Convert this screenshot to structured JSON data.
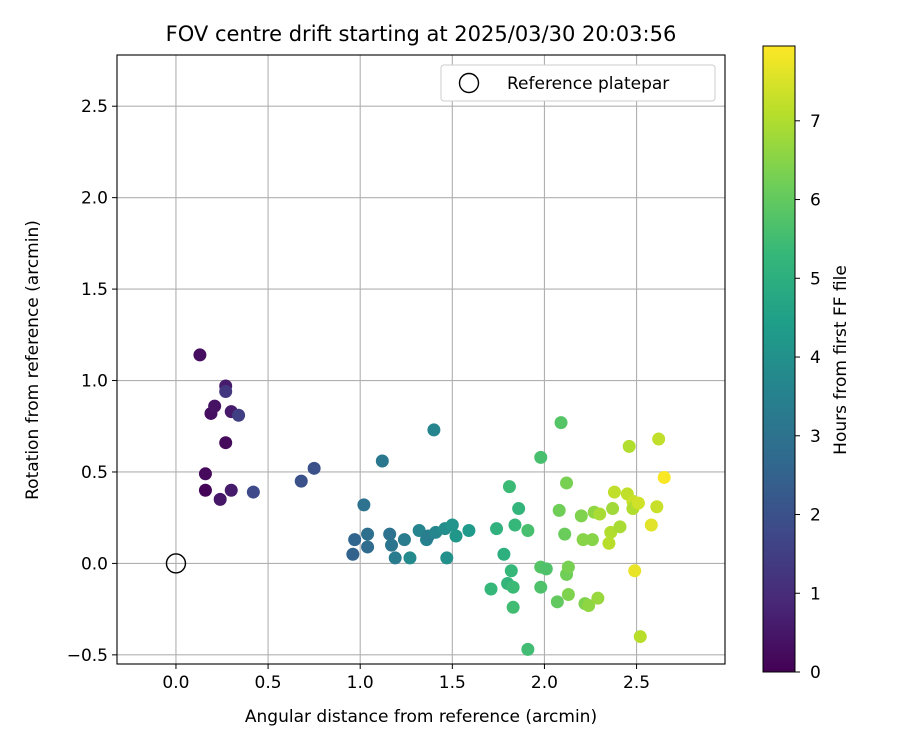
{
  "chart_data": {
    "type": "scatter",
    "title": "FOV centre drift starting at 2025/03/30 20:03:56",
    "xlabel": "Angular distance from reference (arcmin)",
    "ylabel": "Rotation from reference (arcmin)",
    "xlim": [
      -0.32,
      2.98
    ],
    "ylim": [
      -0.55,
      2.78
    ],
    "xticks": [
      0.0,
      0.5,
      1.0,
      1.5,
      2.0,
      2.5
    ],
    "xtick_labels": [
      "0.0",
      "0.5",
      "1.0",
      "1.5",
      "2.0",
      "2.5"
    ],
    "yticks": [
      -0.5,
      0.0,
      0.5,
      1.0,
      1.5,
      2.0,
      2.5
    ],
    "ytick_labels": [
      "−0.5",
      "0.0",
      "0.5",
      "1.0",
      "1.5",
      "2.0",
      "2.5"
    ],
    "grid": true,
    "legend": {
      "placement": "top-right",
      "entries": [
        "Reference platepar"
      ]
    },
    "reference_point": {
      "x": 0.0,
      "y": 0.0,
      "label": "Reference platepar"
    },
    "colorbar": {
      "label": "Hours from first FF file",
      "colormap": "viridis",
      "range": [
        0,
        7.95
      ],
      "ticks": [
        0,
        1,
        2,
        3,
        4,
        5,
        6,
        7
      ],
      "tick_labels": [
        "0",
        "1",
        "2",
        "3",
        "4",
        "5",
        "6",
        "7"
      ]
    },
    "points": [
      {
        "x": 0.13,
        "y": 1.14,
        "t": 0.3
      },
      {
        "x": 0.16,
        "y": 0.49,
        "t": 0.2
      },
      {
        "x": 0.16,
        "y": 0.4,
        "t": 0.1
      },
      {
        "x": 0.19,
        "y": 0.82,
        "t": 0.3
      },
      {
        "x": 0.21,
        "y": 0.86,
        "t": 0.4
      },
      {
        "x": 0.24,
        "y": 0.35,
        "t": 0.5
      },
      {
        "x": 0.27,
        "y": 0.66,
        "t": 0.2
      },
      {
        "x": 0.27,
        "y": 0.97,
        "t": 0.6
      },
      {
        "x": 0.27,
        "y": 0.94,
        "t": 1.3
      },
      {
        "x": 0.3,
        "y": 0.83,
        "t": 0.6
      },
      {
        "x": 0.3,
        "y": 0.4,
        "t": 0.6
      },
      {
        "x": 0.34,
        "y": 0.81,
        "t": 1.5
      },
      {
        "x": 0.42,
        "y": 0.39,
        "t": 1.8
      },
      {
        "x": 0.68,
        "y": 0.45,
        "t": 2.0
      },
      {
        "x": 0.75,
        "y": 0.52,
        "t": 2.0
      },
      {
        "x": 0.96,
        "y": 0.05,
        "t": 2.5
      },
      {
        "x": 0.97,
        "y": 0.13,
        "t": 2.6
      },
      {
        "x": 1.02,
        "y": 0.32,
        "t": 3.0
      },
      {
        "x": 1.04,
        "y": 0.09,
        "t": 2.8
      },
      {
        "x": 1.04,
        "y": 0.16,
        "t": 2.9
      },
      {
        "x": 1.12,
        "y": 0.56,
        "t": 3.2
      },
      {
        "x": 1.16,
        "y": 0.16,
        "t": 3.0
      },
      {
        "x": 1.17,
        "y": 0.1,
        "t": 3.1
      },
      {
        "x": 1.19,
        "y": 0.03,
        "t": 3.3
      },
      {
        "x": 1.24,
        "y": 0.13,
        "t": 3.3
      },
      {
        "x": 1.27,
        "y": 0.03,
        "t": 3.8
      },
      {
        "x": 1.32,
        "y": 0.18,
        "t": 3.6
      },
      {
        "x": 1.36,
        "y": 0.13,
        "t": 3.5
      },
      {
        "x": 1.37,
        "y": 0.15,
        "t": 3.4
      },
      {
        "x": 1.4,
        "y": 0.73,
        "t": 3.6
      },
      {
        "x": 1.41,
        "y": 0.17,
        "t": 3.7
      },
      {
        "x": 1.46,
        "y": 0.19,
        "t": 3.9
      },
      {
        "x": 1.47,
        "y": 0.03,
        "t": 4.0
      },
      {
        "x": 1.5,
        "y": 0.21,
        "t": 4.1
      },
      {
        "x": 1.52,
        "y": 0.15,
        "t": 4.2
      },
      {
        "x": 1.59,
        "y": 0.18,
        "t": 4.3
      },
      {
        "x": 1.71,
        "y": -0.14,
        "t": 5.3
      },
      {
        "x": 1.74,
        "y": 0.19,
        "t": 5.1
      },
      {
        "x": 1.78,
        "y": 0.05,
        "t": 5.0
      },
      {
        "x": 1.8,
        "y": -0.11,
        "t": 5.2
      },
      {
        "x": 1.81,
        "y": 0.42,
        "t": 5.4
      },
      {
        "x": 1.82,
        "y": -0.04,
        "t": 5.3
      },
      {
        "x": 1.83,
        "y": -0.13,
        "t": 5.4
      },
      {
        "x": 1.83,
        "y": -0.24,
        "t": 5.5
      },
      {
        "x": 1.84,
        "y": 0.21,
        "t": 5.3
      },
      {
        "x": 1.86,
        "y": 0.3,
        "t": 5.2
      },
      {
        "x": 1.91,
        "y": -0.47,
        "t": 5.5
      },
      {
        "x": 1.91,
        "y": 0.18,
        "t": 5.6
      },
      {
        "x": 1.98,
        "y": 0.58,
        "t": 5.6
      },
      {
        "x": 1.98,
        "y": -0.13,
        "t": 5.7
      },
      {
        "x": 1.98,
        "y": -0.02,
        "t": 5.8
      },
      {
        "x": 2.01,
        "y": -0.03,
        "t": 5.7
      },
      {
        "x": 2.07,
        "y": -0.21,
        "t": 6.0
      },
      {
        "x": 2.08,
        "y": 0.29,
        "t": 6.2
      },
      {
        "x": 2.09,
        "y": 0.77,
        "t": 5.8
      },
      {
        "x": 2.11,
        "y": 0.16,
        "t": 6.1
      },
      {
        "x": 2.12,
        "y": -0.06,
        "t": 6.2
      },
      {
        "x": 2.12,
        "y": 0.44,
        "t": 6.3
      },
      {
        "x": 2.13,
        "y": -0.02,
        "t": 6.3
      },
      {
        "x": 2.13,
        "y": -0.17,
        "t": 6.4
      },
      {
        "x": 2.2,
        "y": 0.26,
        "t": 6.4
      },
      {
        "x": 2.21,
        "y": 0.13,
        "t": 6.5
      },
      {
        "x": 2.22,
        "y": -0.22,
        "t": 6.4
      },
      {
        "x": 2.24,
        "y": -0.23,
        "t": 6.6
      },
      {
        "x": 2.26,
        "y": 0.13,
        "t": 6.5
      },
      {
        "x": 2.27,
        "y": 0.28,
        "t": 6.6
      },
      {
        "x": 2.29,
        "y": -0.19,
        "t": 6.7
      },
      {
        "x": 2.3,
        "y": 0.27,
        "t": 6.9
      },
      {
        "x": 2.35,
        "y": 0.11,
        "t": 7.1
      },
      {
        "x": 2.36,
        "y": 0.17,
        "t": 7.0
      },
      {
        "x": 2.37,
        "y": 0.3,
        "t": 6.8
      },
      {
        "x": 2.38,
        "y": 0.39,
        "t": 7.2
      },
      {
        "x": 2.41,
        "y": 0.2,
        "t": 6.9
      },
      {
        "x": 2.45,
        "y": 0.38,
        "t": 7.2
      },
      {
        "x": 2.46,
        "y": 0.64,
        "t": 7.0
      },
      {
        "x": 2.48,
        "y": 0.34,
        "t": 7.3
      },
      {
        "x": 2.48,
        "y": 0.3,
        "t": 7.0
      },
      {
        "x": 2.49,
        "y": -0.04,
        "t": 7.7
      },
      {
        "x": 2.51,
        "y": 0.33,
        "t": 7.4
      },
      {
        "x": 2.52,
        "y": -0.4,
        "t": 7.1
      },
      {
        "x": 2.58,
        "y": 0.21,
        "t": 7.6
      },
      {
        "x": 2.61,
        "y": 0.31,
        "t": 7.3
      },
      {
        "x": 2.62,
        "y": 0.68,
        "t": 7.2
      },
      {
        "x": 2.65,
        "y": 0.47,
        "t": 7.9
      }
    ]
  }
}
